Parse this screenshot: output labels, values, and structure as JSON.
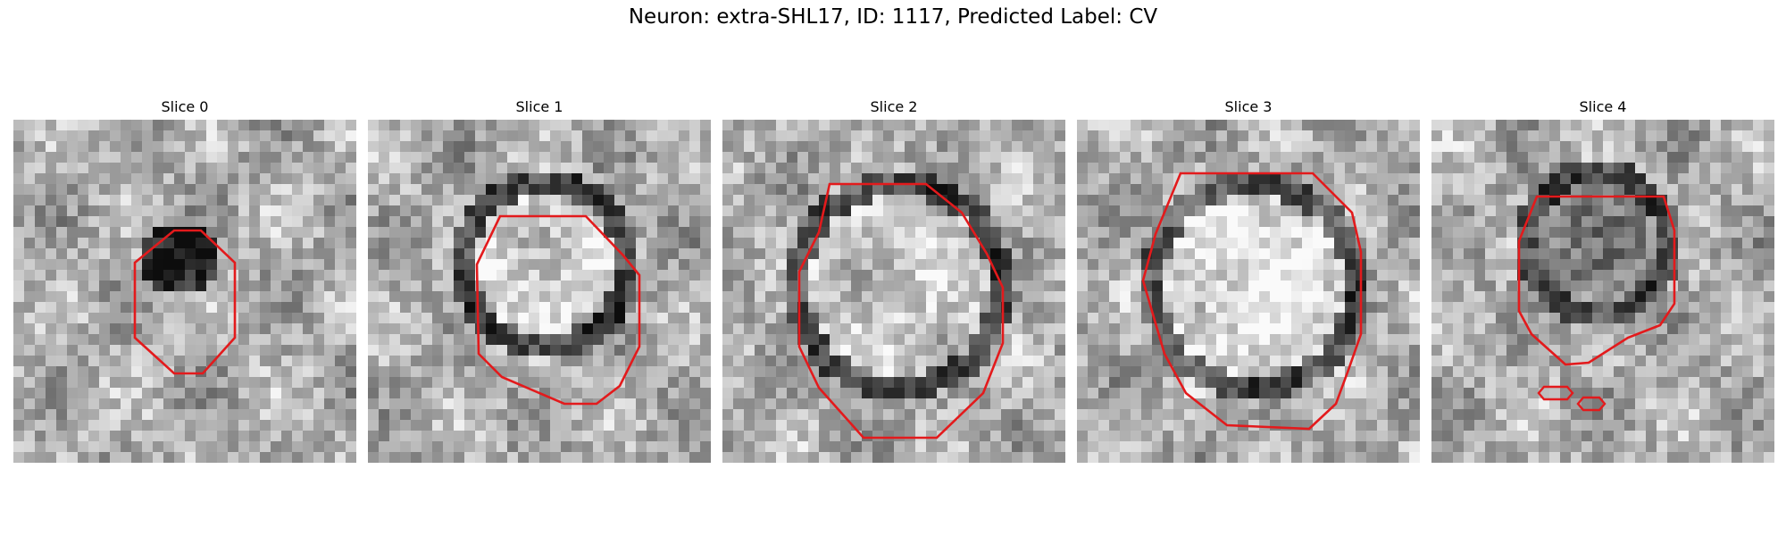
{
  "figure": {
    "title": "Neuron: extra-SHL17, ID: 1117, Predicted Label: CV",
    "contour_color": "#e31a1c",
    "colormap": "gray",
    "slices": [
      {
        "title": "Slice 0"
      },
      {
        "title": "Slice 1"
      },
      {
        "title": "Slice 2"
      },
      {
        "title": "Slice 3"
      },
      {
        "title": "Slice 4"
      }
    ]
  }
}
